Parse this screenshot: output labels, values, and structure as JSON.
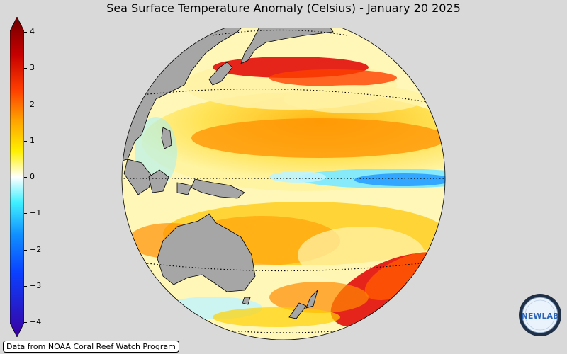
{
  "title": "Sea Surface Temperature Anomaly (Celsius) - January 20 2025",
  "colorbar": {
    "ticks": [
      "4",
      "3",
      "2",
      "1",
      "0",
      "−1",
      "−2",
      "−3",
      "−4"
    ],
    "colors": {
      "max": "#7a0000",
      "red": "#e00000",
      "orange": "#ff9a00",
      "yellow": "#fff000",
      "white": "#ffffff",
      "cyan": "#33e6ff",
      "blue": "#0a5cff",
      "min": "#3a00a0"
    }
  },
  "map": {
    "projection": "orthographic",
    "land_color": "#a6a6a6",
    "background_color": "#d9d9d9"
  },
  "credit": "Data from NOAA Coral Reef Watch Program",
  "logo": {
    "text": "NEWLAB",
    "icon": "newlab-logo"
  }
}
